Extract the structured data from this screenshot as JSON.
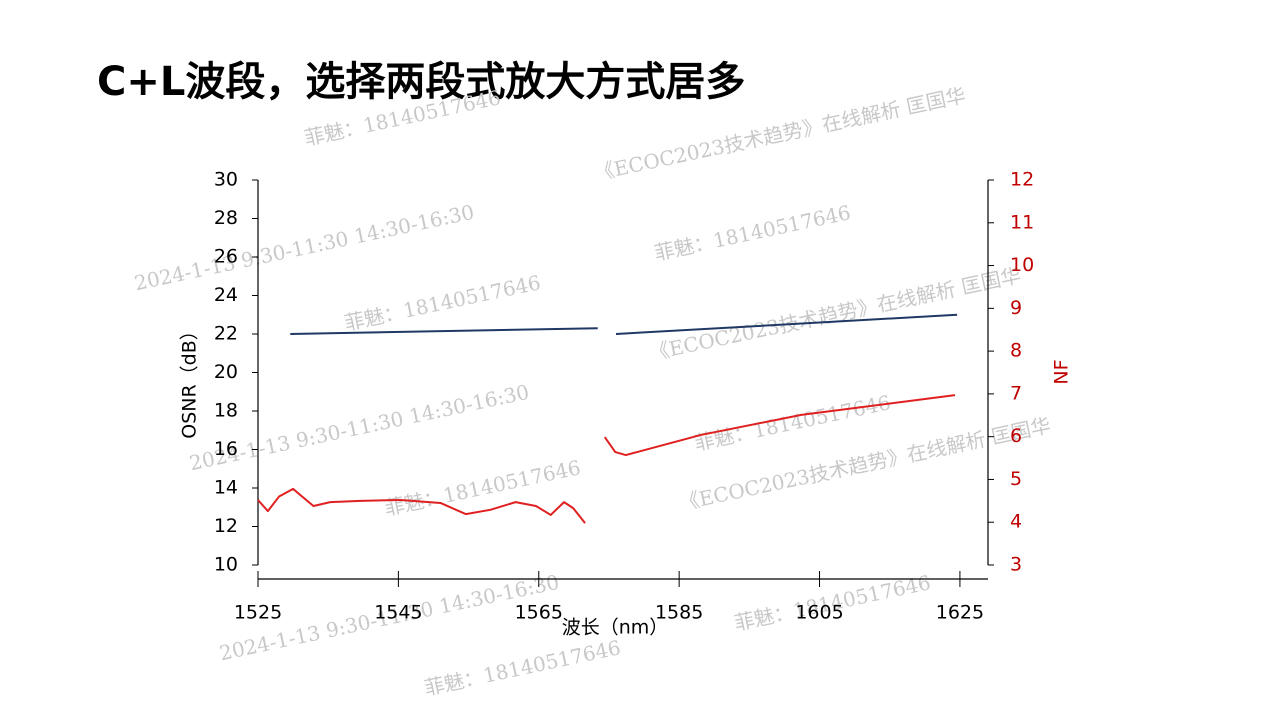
{
  "title": "C+L波段，选择两段式放大方式居多",
  "watermarks": [
    "菲魅：18140517646",
    "《ECOC2023技术趋势》在线解析  匡国华",
    "2024-1-13  9:30-11:30  14:30-16:30"
  ],
  "chart_data": {
    "type": "line",
    "xlabel": "波长（nm）",
    "ylabel": "OSNR（dB）",
    "y2label": "NF",
    "xlim": [
      1525,
      1629
    ],
    "xticks": [
      1525,
      1545,
      1565,
      1585,
      1605,
      1625
    ],
    "ylim": [
      10,
      30
    ],
    "yticks": [
      10,
      12,
      14,
      16,
      18,
      20,
      22,
      24,
      26,
      28,
      30
    ],
    "y2lim": [
      3,
      12
    ],
    "y2ticks": [
      3,
      4,
      5,
      6,
      7,
      8,
      9,
      10,
      11,
      12
    ],
    "y2color": "#c00000",
    "series": [
      {
        "color": "#1f3864",
        "x": [
          1529.6,
          1573.4
        ],
        "values": [
          22.0,
          22.3
        ]
      },
      {
        "color": "#1f3864",
        "x": [
          1576,
          1624.6
        ],
        "values": [
          22.0,
          23.0
        ]
      },
      {
        "color": "#e02020",
        "axis": "y2",
        "x": [
          1525,
          1526.4,
          1528,
          1530,
          1531,
          1532.9,
          1535.3,
          1539.6,
          1545.3,
          1551,
          1554.6,
          1558.1,
          1561.7,
          1564.6,
          1566.7,
          1568.6,
          1569.9,
          1571.6
        ],
        "values": [
          4.52,
          4.26,
          4.6,
          4.78,
          4.64,
          4.38,
          4.47,
          4.5,
          4.52,
          4.45,
          4.19,
          4.29,
          4.47,
          4.38,
          4.17,
          4.47,
          4.33,
          3.98
        ]
      },
      {
        "color": "#e02020",
        "axis": "y2",
        "x": [
          1574.4,
          1575.9,
          1577.4,
          1588.1,
          1602.4,
          1624.3
        ],
        "values": [
          5.99,
          5.64,
          5.57,
          6.04,
          6.51,
          6.97
        ]
      }
    ]
  }
}
